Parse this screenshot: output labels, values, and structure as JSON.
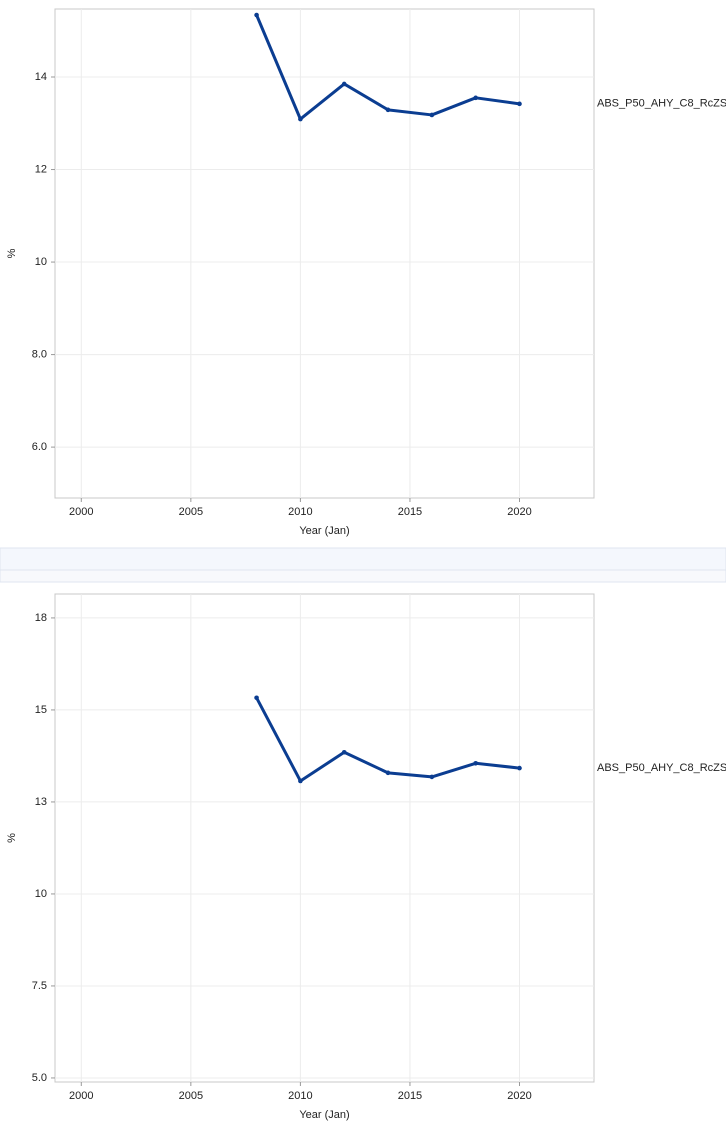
{
  "chart_data": [
    {
      "type": "line",
      "xlabel": "Year (Jan)",
      "ylabel": "%",
      "x": [
        2008,
        2010,
        2012,
        2014,
        2016,
        2018,
        2020
      ],
      "series": [
        {
          "name": "ABS_P50_AHY_C8_RcZS",
          "color": "#0b3d91",
          "values": [
            15.34,
            13.09,
            13.85,
            13.29,
            13.18,
            13.55,
            13.42
          ]
        }
      ],
      "xlim": [
        1998.8,
        2023.4
      ],
      "xticks": [
        2000,
        2005,
        2010,
        2015,
        2020
      ],
      "ylim": [
        4.9,
        15.47
      ],
      "yticks": [
        {
          "value": 6,
          "label": "6.0"
        },
        {
          "value": 8,
          "label": "8.0"
        },
        10,
        12,
        14
      ],
      "grid": true
    },
    {
      "type": "line",
      "xlabel": "Year (Jan)",
      "ylabel": "%",
      "x": [
        2008,
        2010,
        2012,
        2014,
        2016,
        2018,
        2020
      ],
      "series": [
        {
          "name": "ABS_P50_AHY_C8_RcZS",
          "color": "#0b3d91",
          "values": [
            15.33,
            13.07,
            13.85,
            13.29,
            13.18,
            13.55,
            13.42
          ]
        }
      ],
      "xlim": [
        1998.8,
        2023.4
      ],
      "xticks": [
        2000,
        2005,
        2010,
        2015,
        2020
      ],
      "ylim": [
        4.89,
        18.15
      ],
      "yticks": [
        {
          "value": 5,
          "label": "5.0"
        },
        {
          "value": 7.5,
          "label": "7.5"
        },
        10,
        {
          "value": 12.5,
          "label": "13"
        },
        15,
        {
          "value": 17.5,
          "label": "18"
        }
      ],
      "grid": true
    }
  ]
}
